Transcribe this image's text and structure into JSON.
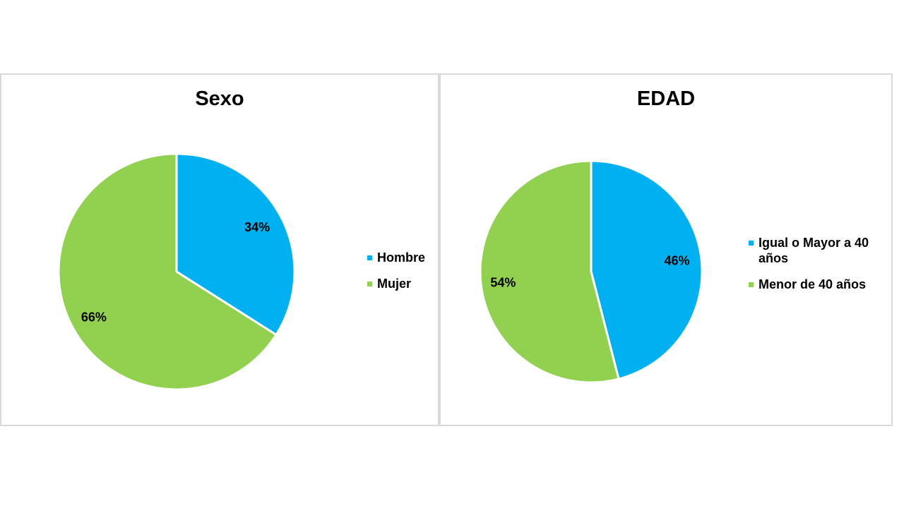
{
  "chart_data": [
    {
      "type": "pie",
      "title": "Sexo",
      "slices": [
        {
          "label": "Hombre",
          "value": 34,
          "display": "34%",
          "color": "#00b0f0"
        },
        {
          "label": "Mujer",
          "value": 66,
          "display": "66%",
          "color": "#92d050"
        }
      ],
      "legend_position": "right"
    },
    {
      "type": "pie",
      "title": "EDAD",
      "slices": [
        {
          "label": "Igual o Mayor a 40 años",
          "value": 46,
          "display": "46%",
          "color": "#00b0f0"
        },
        {
          "label": "Menor de 40 años",
          "value": 54,
          "display": "54%",
          "color": "#92d050"
        }
      ],
      "legend_position": "right"
    }
  ]
}
